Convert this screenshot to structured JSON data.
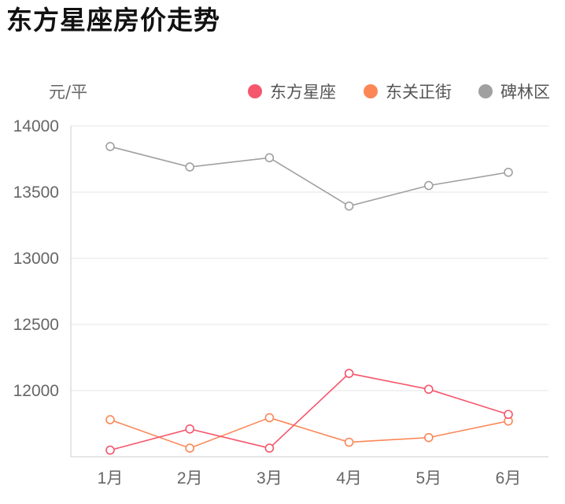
{
  "title": "东方星座房价走势",
  "chart_data": {
    "type": "line",
    "title": "东方星座房价走势",
    "ylabel": "元/平",
    "xlabel": "",
    "categories": [
      "1月",
      "2月",
      "3月",
      "4月",
      "5月",
      "6月"
    ],
    "ylim": [
      11500,
      14000
    ],
    "yticks": [
      12000,
      12500,
      13000,
      13500,
      14000
    ],
    "grid": true,
    "legend_position": "top-right",
    "series": [
      {
        "name": "东方星座",
        "color": "#f5566c",
        "values": [
          11550,
          11710,
          11565,
          12130,
          12010,
          11820
        ]
      },
      {
        "name": "东关正街",
        "color": "#fb8757",
        "values": [
          11780,
          11565,
          11795,
          11610,
          11645,
          11770
        ]
      },
      {
        "name": "碑林区",
        "color": "#a0a0a0",
        "values": [
          13845,
          13690,
          13760,
          13395,
          13550,
          13650
        ]
      }
    ]
  }
}
